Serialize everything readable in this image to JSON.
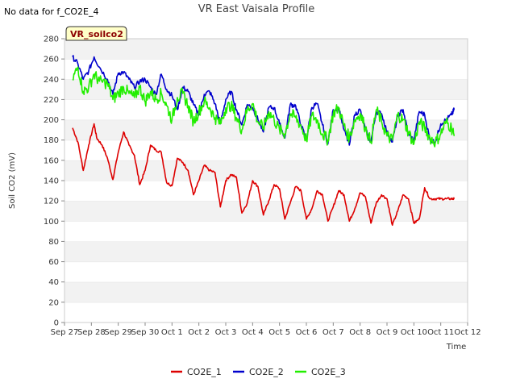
{
  "chart_data": {
    "type": "line",
    "title": "VR East Vaisala Profile",
    "no_data_note": "No data for f_CO2E_4",
    "site_badge": "VR_soilco2",
    "xlabel": "Time",
    "ylabel": "Soil CO2 (mV)",
    "ylim": [
      0,
      280
    ],
    "yticks": [
      0,
      20,
      40,
      60,
      80,
      100,
      120,
      140,
      160,
      180,
      200,
      220,
      240,
      260,
      280
    ],
    "xlim": [
      0,
      15
    ],
    "xtick_labels": [
      "Sep 27",
      "Sep 28",
      "Sep 29",
      "Sep 30",
      "Oct 1",
      "Oct 2",
      "Oct 3",
      "Oct 4",
      "Oct 5",
      "Oct 6",
      "Oct 7",
      "Oct 8",
      "Oct 9",
      "Oct 10",
      "Oct 11",
      "Oct 12"
    ],
    "grid": "horizontal alternating bands",
    "legend_position": "bottom-center",
    "series": [
      {
        "name": "CO2E_1",
        "color": "#dd0000",
        "x": [
          0.3,
          0.5,
          0.7,
          0.9,
          1.1,
          1.2,
          1.4,
          1.6,
          1.8,
          2.0,
          2.2,
          2.4,
          2.6,
          2.8,
          3.0,
          3.2,
          3.4,
          3.6,
          3.8,
          4.0,
          4.2,
          4.4,
          4.6,
          4.8,
          5.0,
          5.2,
          5.4,
          5.6,
          5.8,
          6.0,
          6.2,
          6.4,
          6.6,
          6.8,
          7.0,
          7.2,
          7.4,
          7.6,
          7.8,
          8.0,
          8.2,
          8.4,
          8.6,
          8.8,
          9.0,
          9.2,
          9.4,
          9.6,
          9.8,
          10.0,
          10.2,
          10.4,
          10.6,
          10.8,
          11.0,
          11.2,
          11.4,
          11.6,
          11.8,
          12.0,
          12.2,
          12.4,
          12.6,
          12.8,
          13.0,
          13.2,
          13.4,
          13.6,
          13.8,
          14.0,
          14.2,
          14.4,
          14.5
        ],
        "y": [
          192,
          178,
          150,
          175,
          196,
          182,
          175,
          162,
          141,
          168,
          188,
          175,
          165,
          136,
          150,
          175,
          170,
          168,
          138,
          135,
          162,
          158,
          150,
          126,
          140,
          155,
          150,
          148,
          114,
          140,
          146,
          143,
          108,
          118,
          140,
          134,
          106,
          120,
          136,
          132,
          102,
          118,
          134,
          130,
          102,
          112,
          130,
          126,
          100,
          114,
          130,
          126,
          100,
          112,
          128,
          124,
          98,
          118,
          126,
          122,
          96,
          110,
          126,
          122,
          98,
          102,
          133,
          122,
          122,
          122,
          122,
          122,
          122
        ]
      },
      {
        "name": "CO2E_2",
        "color": "#0000cc",
        "x": [
          0.3,
          0.5,
          0.7,
          0.9,
          1.1,
          1.3,
          1.6,
          1.8,
          2.0,
          2.2,
          2.4,
          2.6,
          2.8,
          3.0,
          3.2,
          3.4,
          3.6,
          3.8,
          4.0,
          4.2,
          4.4,
          4.6,
          4.8,
          5.0,
          5.2,
          5.4,
          5.6,
          5.8,
          6.0,
          6.2,
          6.4,
          6.6,
          6.8,
          7.0,
          7.2,
          7.4,
          7.6,
          7.8,
          8.0,
          8.2,
          8.4,
          8.6,
          8.8,
          9.0,
          9.2,
          9.4,
          9.6,
          9.8,
          10.0,
          10.2,
          10.4,
          10.6,
          10.8,
          11.0,
          11.2,
          11.4,
          11.6,
          11.8,
          12.0,
          12.2,
          12.4,
          12.6,
          12.8,
          13.0,
          13.2,
          13.4,
          13.6,
          13.8,
          14.0,
          14.2,
          14.4,
          14.5
        ],
        "y": [
          262,
          255,
          240,
          248,
          262,
          252,
          240,
          225,
          246,
          247,
          240,
          232,
          238,
          240,
          232,
          225,
          245,
          230,
          224,
          210,
          232,
          228,
          215,
          205,
          225,
          228,
          216,
          196,
          220,
          228,
          210,
          195,
          215,
          212,
          200,
          188,
          212,
          212,
          196,
          182,
          215,
          214,
          195,
          180,
          212,
          216,
          195,
          176,
          210,
          212,
          190,
          175,
          205,
          210,
          190,
          178,
          208,
          206,
          188,
          178,
          204,
          210,
          185,
          180,
          208,
          205,
          180,
          178,
          196,
          200,
          205,
          210
        ]
      },
      {
        "name": "CO2E_3",
        "color": "#22ee00",
        "x": [
          0.3,
          0.5,
          0.7,
          0.9,
          1.1,
          1.3,
          1.6,
          1.8,
          2.0,
          2.2,
          2.4,
          2.6,
          2.8,
          3.0,
          3.2,
          3.4,
          3.6,
          3.8,
          4.0,
          4.2,
          4.4,
          4.6,
          4.8,
          5.0,
          5.2,
          5.4,
          5.6,
          5.8,
          6.0,
          6.2,
          6.4,
          6.6,
          6.8,
          7.0,
          7.2,
          7.4,
          7.6,
          7.8,
          8.0,
          8.2,
          8.4,
          8.6,
          8.8,
          9.0,
          9.2,
          9.4,
          9.6,
          9.8,
          10.0,
          10.2,
          10.4,
          10.6,
          10.8,
          11.0,
          11.2,
          11.4,
          11.6,
          11.8,
          12.0,
          12.2,
          12.4,
          12.6,
          12.8,
          13.0,
          13.2,
          13.4,
          13.6,
          13.8,
          14.0,
          14.2,
          14.4,
          14.5
        ],
        "y": [
          240,
          252,
          228,
          232,
          245,
          238,
          236,
          220,
          226,
          232,
          226,
          222,
          232,
          218,
          228,
          220,
          226,
          214,
          200,
          222,
          226,
          214,
          198,
          208,
          218,
          212,
          202,
          196,
          212,
          214,
          202,
          190,
          210,
          216,
          198,
          192,
          208,
          200,
          190,
          186,
          206,
          202,
          194,
          180,
          204,
          200,
          186,
          180,
          206,
          212,
          194,
          182,
          200,
          206,
          192,
          178,
          210,
          198,
          184,
          180,
          205,
          200,
          188,
          176,
          198,
          192,
          182,
          178,
          186,
          198,
          192,
          184
        ]
      }
    ]
  }
}
